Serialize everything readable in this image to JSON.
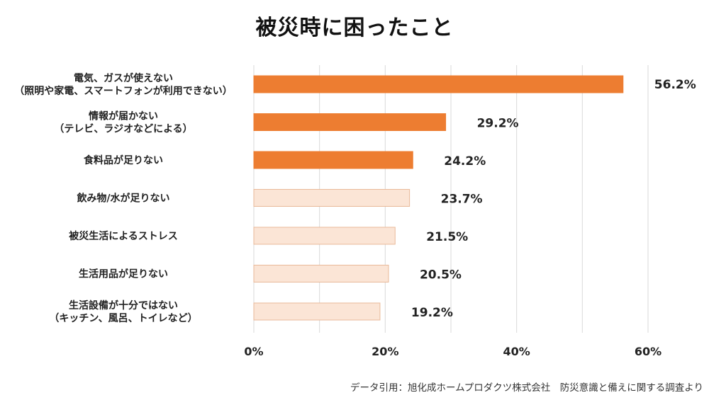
{
  "title": "被災時に困ったこと",
  "source": "データ引用：旭化成ホームプロダクツ株式会社　防災意識と備えに関する調査より",
  "colors": {
    "highlight": "#ED7D31",
    "light": "#FBE5D6",
    "light_border": "#E9B999",
    "grid": "#D9D9D9",
    "text": "#222222"
  },
  "chart_data": {
    "type": "bar",
    "orientation": "horizontal",
    "title": "被災時に困ったこと",
    "categories": [
      [
        "電気、ガスが使えない",
        "（照明や家電、スマートフォンが利用できない）"
      ],
      [
        "情報が届かない",
        "（テレビ、ラジオなどによる）"
      ],
      [
        "食料品が足りない"
      ],
      [
        "飲み物/水が足りない"
      ],
      [
        "被災生活によるストレス"
      ],
      [
        "生活用品が足りない"
      ],
      [
        "生活設備が十分ではない",
        "（キッチン、風呂、トイレなど）"
      ]
    ],
    "values": [
      56.2,
      29.2,
      24.2,
      23.7,
      21.5,
      20.5,
      19.2
    ],
    "value_labels": [
      "56.2%",
      "29.2%",
      "24.2%",
      "23.7%",
      "21.5%",
      "20.5%",
      "19.2%"
    ],
    "highlighted": [
      true,
      true,
      true,
      false,
      false,
      false,
      false
    ],
    "xlim": [
      0,
      60
    ],
    "xticks": [
      0,
      20,
      40,
      60
    ],
    "xtick_labels": [
      "0%",
      "20%",
      "40%",
      "60%"
    ],
    "grid": true,
    "legend": "none"
  }
}
